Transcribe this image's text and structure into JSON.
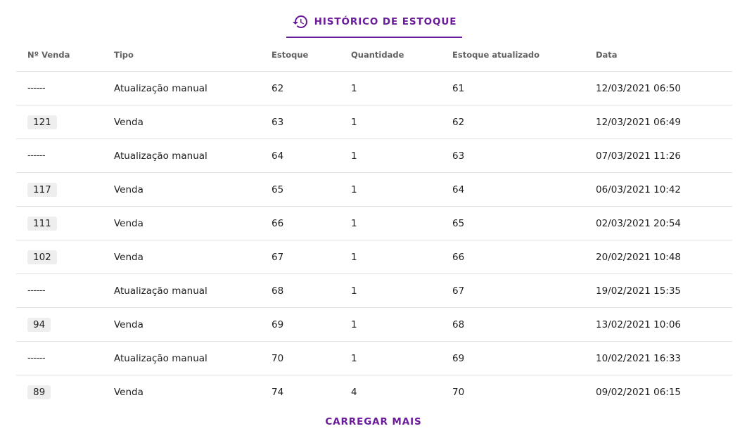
{
  "tab": {
    "label": "HISTÓRICO DE ESTOQUE",
    "icon": "history-icon",
    "accent_color": "#6a1b9a"
  },
  "table": {
    "headers": [
      "Nº Venda",
      "Tipo",
      "Estoque",
      "Quantidade",
      "Estoque atualizado",
      "Data"
    ],
    "rows": [
      {
        "sale": "------",
        "sale_is_link": false,
        "type": "Atualização manual",
        "stock": "62",
        "qty": "1",
        "updated": "61",
        "date": "12/03/2021 06:50"
      },
      {
        "sale": "121",
        "sale_is_link": true,
        "type": "Venda",
        "stock": "63",
        "qty": "1",
        "updated": "62",
        "date": "12/03/2021 06:49"
      },
      {
        "sale": "------",
        "sale_is_link": false,
        "type": "Atualização manual",
        "stock": "64",
        "qty": "1",
        "updated": "63",
        "date": "07/03/2021 11:26"
      },
      {
        "sale": "117",
        "sale_is_link": true,
        "type": "Venda",
        "stock": "65",
        "qty": "1",
        "updated": "64",
        "date": "06/03/2021 10:42"
      },
      {
        "sale": "111",
        "sale_is_link": true,
        "type": "Venda",
        "stock": "66",
        "qty": "1",
        "updated": "65",
        "date": "02/03/2021 20:54"
      },
      {
        "sale": "102",
        "sale_is_link": true,
        "type": "Venda",
        "stock": "67",
        "qty": "1",
        "updated": "66",
        "date": "20/02/2021 10:48"
      },
      {
        "sale": "------",
        "sale_is_link": false,
        "type": "Atualização manual",
        "stock": "68",
        "qty": "1",
        "updated": "67",
        "date": "19/02/2021 15:35"
      },
      {
        "sale": "94",
        "sale_is_link": true,
        "type": "Venda",
        "stock": "69",
        "qty": "1",
        "updated": "68",
        "date": "13/02/2021 10:06"
      },
      {
        "sale": "------",
        "sale_is_link": false,
        "type": "Atualização manual",
        "stock": "70",
        "qty": "1",
        "updated": "69",
        "date": "10/02/2021 16:33"
      },
      {
        "sale": "89",
        "sale_is_link": true,
        "type": "Venda",
        "stock": "74",
        "qty": "4",
        "updated": "70",
        "date": "09/02/2021 06:15"
      }
    ]
  },
  "load_more": {
    "label": "CARREGAR MAIS"
  }
}
